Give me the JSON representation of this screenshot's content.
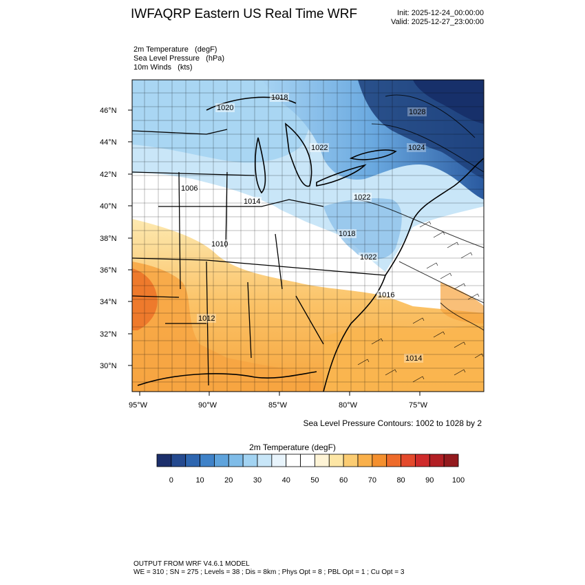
{
  "header": {
    "title": "IWFAQRP Eastern US Real Time WRF",
    "init": "Init: 2025-12-24_00:00:00",
    "valid": "Valid: 2025-12-27_23:00:00"
  },
  "fields": [
    "2m Temperature   (degF)",
    "Sea Level Pressure   (hPa)",
    "10m Winds   (kts)"
  ],
  "map": {
    "lat_labels": [
      "46°N",
      "44°N",
      "42°N",
      "40°N",
      "38°N",
      "36°N",
      "34°N",
      "32°N",
      "30°N"
    ],
    "lon_labels": [
      "95°W",
      "90°W",
      "85°W",
      "80°W",
      "75°W"
    ],
    "pressure_labels": [
      "1018",
      "1020",
      "1028",
      "1022",
      "1024",
      "1006",
      "1014",
      "1022",
      "1010",
      "1018",
      "1022",
      "1016",
      "1012",
      "1014"
    ],
    "colors": {
      "cold_deep": "#1d3f7a",
      "cold": "#4a8fd0",
      "cool": "#a6d4f2",
      "neutral": "#ffffff",
      "warm_light": "#fde7a6",
      "warm": "#f9b14d",
      "hot": "#ef7b2a"
    }
  },
  "slp_note": "Sea Level Pressure Contours: 1002 to 1028 by 2",
  "colorbar": {
    "title": "2m Temperature  (degF)",
    "colors": [
      "#1c2f6b",
      "#254a8f",
      "#2e66b0",
      "#3f82c8",
      "#5ea3dc",
      "#7fbce8",
      "#a2d3f2",
      "#c8e6f8",
      "#e8f4fc",
      "#ffffff",
      "#ffffff",
      "#fef4d6",
      "#fde6a5",
      "#fbcc72",
      "#f9b04b",
      "#f4902f",
      "#ee6b2b",
      "#e44a2c",
      "#cf2b2b",
      "#b21f24",
      "#931a1e"
    ],
    "tick_labels": [
      "0",
      "10",
      "20",
      "30",
      "40",
      "50",
      "60",
      "70",
      "80",
      "90",
      "100"
    ]
  },
  "footer": {
    "line1": "OUTPUT FROM WRF V4.6.1 MODEL",
    "line2": "WE = 310 ; SN = 275 ; Levels = 38 ; Dis = 8km ; Phys Opt = 8 ; PBL Opt = 1 ; Cu Opt = 3"
  }
}
